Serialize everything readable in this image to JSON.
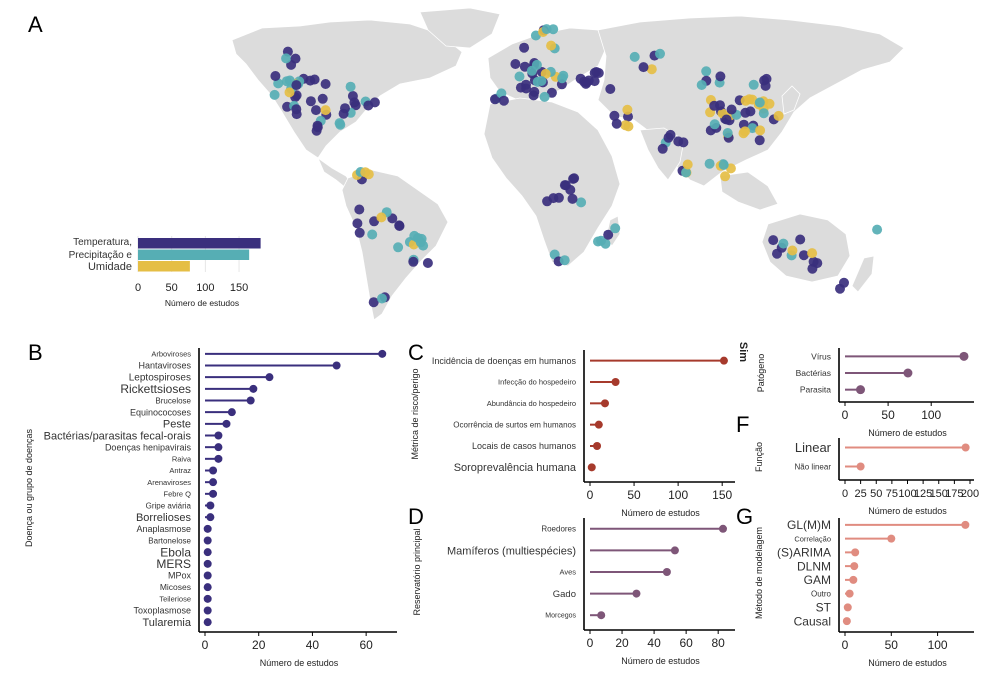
{
  "colors": {
    "dark_purple": "#3a2f7d",
    "teal": "#56aeb4",
    "yellow": "#e5be45",
    "red": "#a63a2c",
    "mauve": "#7e5678",
    "salmon": "#e08c80",
    "land": "#dcdcdc",
    "axis": "#000000"
  },
  "chart_data": [
    {
      "panel": "A",
      "type": "bar",
      "orientation": "horizontal",
      "xlabel": "Número de estudos",
      "ylabel": "",
      "categories": [
        "Temperatura,",
        "Precipitação e",
        "Umidade"
      ],
      "values": [
        182,
        165,
        77
      ],
      "xlim": [
        0,
        190
      ],
      "xticks": [
        0,
        50,
        100,
        150
      ],
      "category_colors": [
        "#3a2f7d",
        "#56aeb4",
        "#e5be45"
      ],
      "note": "inset bar chart over a world map of study locations"
    },
    {
      "panel": "B",
      "type": "lollipop",
      "xlabel": "Número de estudos",
      "ylabel": "Doença ou grupo de doenças",
      "categories": [
        "Arboviroses",
        "Hantaviroses",
        "Leptospiroses",
        "Rickettsioses",
        "Brucelose",
        "Equinococoses",
        "Peste",
        "Bactérias/parasitas fecal-orais",
        "Doenças henipavirais",
        "Raiva",
        "Antraz",
        "Arenaviroses",
        "Febre Q",
        "Gripe aviária",
        "Borrelioses",
        "Anaplasmose",
        "Bartonelose",
        "Ebola",
        "MERS",
        "MPox",
        "Micoses",
        "Teileriose",
        "Toxoplasmose",
        "Tularemia"
      ],
      "values": [
        66,
        49,
        24,
        18,
        17,
        10,
        8,
        5,
        5,
        5,
        3,
        3,
        3,
        2,
        2,
        1,
        1,
        1,
        1,
        1,
        1,
        1,
        1,
        1
      ],
      "xlim": [
        0,
        70
      ],
      "xticks": [
        0,
        20,
        40,
        60
      ],
      "color": "#3a2f7d"
    },
    {
      "panel": "C",
      "type": "lollipop",
      "xlabel": "Número de estudos",
      "ylabel": "Métrica de risco/perigo",
      "categories": [
        "Incidência de doenças em humanos",
        "Infecção do hospedeiro",
        "Abundância do hospedeiro",
        "Ocorrência de surtos em humanos",
        "Locais de casos humanos",
        "Soroprevalência humana"
      ],
      "values": [
        152,
        29,
        17,
        10,
        8,
        2
      ],
      "xlim": [
        0,
        160
      ],
      "xticks": [
        0,
        50,
        100,
        150
      ],
      "color": "#a63a2c"
    },
    {
      "panel": "C-right",
      "type": "lollipop",
      "title": "Sim",
      "xlabel": "Número de estudos",
      "ylabel": "Patógeno",
      "categories": [
        "Vírus",
        "Bactérias",
        "Parasita"
      ],
      "values": [
        138,
        73,
        18
      ],
      "xlim": [
        0,
        145
      ],
      "xticks": [
        0,
        50,
        100
      ],
      "color": "#7e5678"
    },
    {
      "panel": "D",
      "type": "lollipop",
      "xlabel": "Número de estudos",
      "ylabel": "Reservatório principal",
      "categories": [
        "Roedores",
        "Mamíferos (multiespécies)",
        "Aves",
        "Gado",
        "Morcegos"
      ],
      "values": [
        83,
        53,
        48,
        29,
        7
      ],
      "xlim": [
        0,
        88
      ],
      "xticks": [
        0,
        20,
        40,
        60,
        80
      ],
      "color": "#7e5678"
    },
    {
      "panel": "F",
      "type": "lollipop",
      "xlabel": "Número de estudos",
      "ylabel": "Função",
      "categories": [
        "Linear",
        "Não linear"
      ],
      "values": [
        193,
        25
      ],
      "xlim": [
        0,
        200
      ],
      "xticks": [
        0,
        25,
        50,
        75,
        100,
        125,
        150,
        175,
        200
      ],
      "color": "#e08c80"
    },
    {
      "panel": "G",
      "type": "lollipop",
      "xlabel": "Número de estudos",
      "ylabel": "Método de modelagem",
      "categories": [
        "GL(M)M",
        "Correlação",
        "(S)ARIMA",
        "DLNM",
        "GAM",
        "Outro",
        "ST",
        "Causal"
      ],
      "values": [
        130,
        50,
        11,
        10,
        9,
        5,
        3,
        2
      ],
      "xlim": [
        0,
        135
      ],
      "xticks": [
        0,
        50,
        100
      ],
      "color": "#e08c80"
    }
  ],
  "labels": {
    "panel_a": "A",
    "panel_b": "B",
    "panel_c": "C",
    "panel_d": "D",
    "panel_f": "F",
    "panel_g": "G"
  },
  "map": {
    "point_series": [
      {
        "name": "Temperatura",
        "color": "#3a2f7d"
      },
      {
        "name": "Precipitação",
        "color": "#56aeb4"
      },
      {
        "name": "Umidade",
        "color": "#e5be45"
      }
    ]
  }
}
